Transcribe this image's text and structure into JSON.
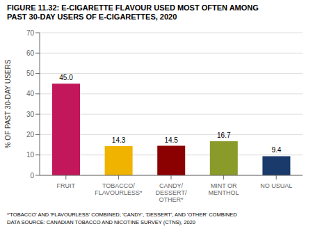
{
  "chart_data": {
    "type": "bar",
    "title": "FIGURE 11.32: E-CIGARETTE FLAVOUR USED MOST OFTEN AMONG\nPAST 30-DAY USERS OF E-CIGARETTES, 2020",
    "categories": [
      "FRUIT",
      "TOBACCO/\nFLAVOURLESS*",
      "CANDY/\nDESSERT/\nOTHER*",
      "MINT OR\nMENTHOL",
      "NO USUAL"
    ],
    "values": [
      45.0,
      14.3,
      14.5,
      16.7,
      9.4
    ],
    "value_labels": [
      "45.0",
      "14.3",
      "14.5",
      "16.7",
      "9.4"
    ],
    "colors": [
      "#C2185B",
      "#F0B400",
      "#8B0000",
      "#8B9B2A",
      "#1A3A6B"
    ],
    "ylabel": "% OF PAST 30-DAY USERS",
    "ylim": [
      0,
      70
    ],
    "yticks": [
      0,
      10,
      20,
      30,
      40,
      50,
      60,
      70
    ],
    "grid": true,
    "data_labels": true,
    "annotations": [
      "*'TOBACCO' AND 'FLAVOURLESS' COMBINED; 'CANDY', 'DESSERT', AND 'OTHER' COMBINED",
      "DATA SOURCE: CANADIAN TOBACCO AND NICOTINE SURVEY (CTNS), 2020"
    ]
  }
}
